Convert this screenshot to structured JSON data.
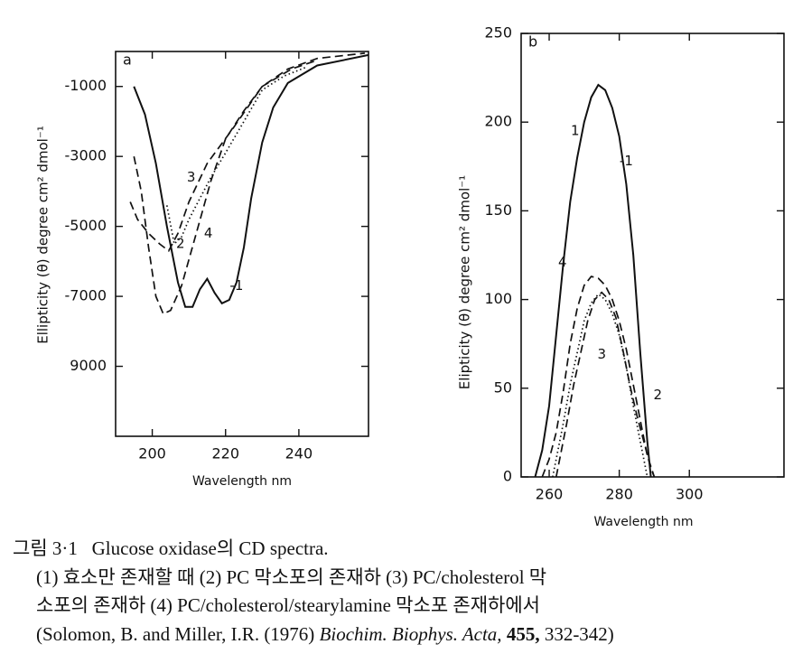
{
  "chart_data": [
    {
      "type": "line",
      "panel": "a",
      "xlabel": "Wavelength nm",
      "ylabel": "Ellipticity (θ) degree cm² dmol⁻¹",
      "xlim": [
        190,
        259
      ],
      "ylim": [
        -11000,
        0
      ],
      "xticks": [
        200,
        220,
        240
      ],
      "yticks": [
        -1000,
        -3000,
        -5000,
        -7000,
        {
          "value": -9000,
          "label": "9000"
        }
      ],
      "series": [
        {
          "name": "1",
          "color": "#111111",
          "style": "solid",
          "x": [
            195,
            198,
            201,
            204,
            207,
            209,
            211,
            213,
            215,
            217,
            219,
            221,
            223,
            225,
            227,
            230,
            233,
            237,
            245,
            259
          ],
          "values": [
            -1000,
            -1800,
            -3200,
            -5000,
            -6600,
            -7300,
            -7300,
            -6800,
            -6500,
            -6900,
            -7200,
            -7100,
            -6600,
            -5600,
            -4200,
            -2600,
            -1600,
            -900,
            -400,
            -100
          ]
        },
        {
          "name": "2",
          "color": "#111111",
          "style": "dashed",
          "x": [
            195,
            197,
            199,
            201,
            203,
            205,
            208,
            212,
            216,
            220,
            225,
            230,
            237,
            245,
            258
          ],
          "values": [
            -3000,
            -4000,
            -5600,
            -7000,
            -7500,
            -7400,
            -6700,
            -5200,
            -3700,
            -2500,
            -1700,
            -1000,
            -500,
            -200,
            -50
          ]
        },
        {
          "name": "3",
          "color": "#111111",
          "style": "dashed",
          "x": [
            194,
            196,
            199,
            202,
            204.5,
            207,
            210,
            215,
            222,
            230,
            238,
            245
          ],
          "values": [
            -4300,
            -4800,
            -5200,
            -5500,
            -5700,
            -5200,
            -4300,
            -3200,
            -2200,
            -1000,
            -500,
            -250
          ]
        },
        {
          "name": "4",
          "color": "#111111",
          "style": "dotted",
          "x": [
            204,
            206,
            208,
            210,
            213,
            216,
            220,
            225,
            230,
            236,
            242
          ],
          "values": [
            -4400,
            -5500,
            -5300,
            -4800,
            -4200,
            -3600,
            -2900,
            -2000,
            -1100,
            -700,
            -450
          ]
        }
      ],
      "annotations": [
        {
          "text": "-1",
          "x": 223,
          "y": -6700
        },
        {
          "text": "2",
          "x": 207.7,
          "y": -5500
        },
        {
          "text": "3",
          "x": 210.6,
          "y": -3600
        },
        {
          "text": "4",
          "x": 215.3,
          "y": -5200
        }
      ]
    },
    {
      "type": "line",
      "panel": "b",
      "xlabel": "Wavelength nm",
      "ylabel": "Elipticity (θ) degree cm² dmol⁻¹",
      "xlim": [
        252,
        327
      ],
      "ylim": [
        0,
        250
      ],
      "xticks": [
        260,
        280,
        300
      ],
      "yticks": [
        0,
        50,
        100,
        150,
        200,
        250
      ],
      "series": [
        {
          "name": "1",
          "color": "#111111",
          "style": "solid",
          "x": [
            256,
            258,
            260,
            262,
            264,
            266,
            268,
            270,
            272,
            274,
            276,
            278,
            280,
            282,
            284,
            286,
            288,
            289
          ],
          "values": [
            0,
            15,
            40,
            80,
            120,
            155,
            180,
            200,
            214,
            221,
            218,
            208,
            192,
            165,
            125,
            70,
            20,
            0
          ]
        },
        {
          "name": "4",
          "color": "#111111",
          "style": "dashed",
          "x": [
            258,
            260,
            262,
            264,
            266,
            268,
            270,
            272,
            274,
            276,
            278,
            280,
            282,
            284,
            286,
            288,
            290
          ],
          "values": [
            0,
            10,
            25,
            48,
            75,
            95,
            108,
            113,
            112,
            108,
            100,
            88,
            72,
            52,
            32,
            12,
            0
          ]
        },
        {
          "name": "3",
          "color": "#111111",
          "style": "dotted",
          "x": [
            261,
            264,
            266,
            268,
            270,
            272,
            274,
            276,
            278,
            280,
            282,
            284,
            286,
            288
          ],
          "values": [
            0,
            30,
            52,
            70,
            88,
            98,
            103,
            100,
            92,
            80,
            62,
            40,
            20,
            0
          ]
        },
        {
          "name": "2",
          "color": "#111111",
          "style": "dashed",
          "x": [
            262,
            265,
            267,
            269,
            271,
            273,
            275,
            277,
            279,
            281,
            283,
            285,
            287,
            289,
            290
          ],
          "values": [
            0,
            30,
            52,
            70,
            88,
            100,
            104,
            100,
            90,
            72,
            52,
            35,
            20,
            5,
            0
          ]
        }
      ],
      "annotations": [
        {
          "text": "1",
          "x": 267.4,
          "y": 195
        },
        {
          "text": "-1",
          "x": 282,
          "y": 178
        },
        {
          "text": "4",
          "x": 263.8,
          "y": 121
        },
        {
          "text": "3",
          "x": 275,
          "y": 69
        },
        {
          "text": "2",
          "x": 291,
          "y": 46
        }
      ]
    }
  ],
  "caption": {
    "label": "그림 3·1",
    "title": "Glucose oxidase의 CD spectra.",
    "lines": [
      "(1) 효소만 존재할 때 (2) PC 막소포의 존재하 (3) PC/cholesterol 막",
      "소포의 존재하 (4) PC/cholesterol/stearylamine 막소포 존재하에서"
    ],
    "reference": [
      "(Solomon, B. and Miller, I.R. (1976) ",
      "Biochim. Biophys. Acta,",
      " 455,",
      " 332-342)"
    ]
  }
}
